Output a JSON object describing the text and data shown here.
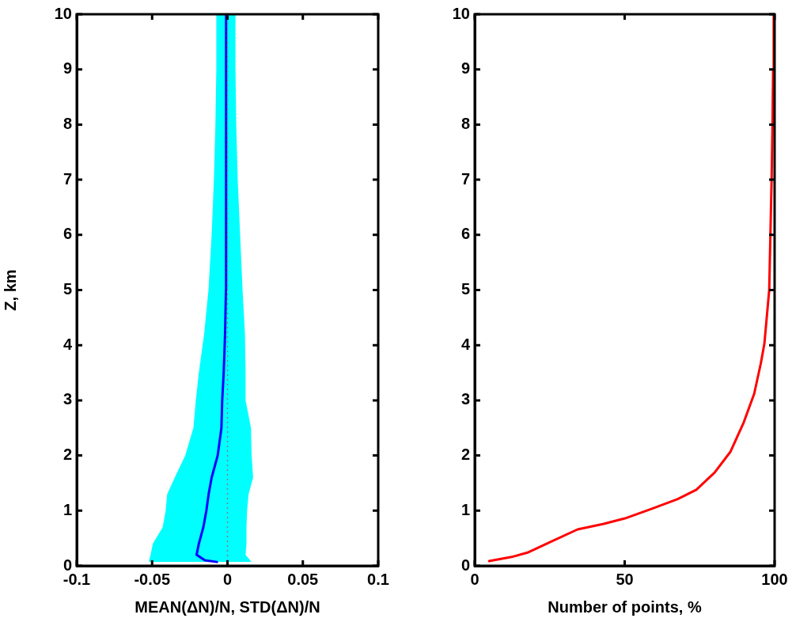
{
  "chart_data": [
    {
      "type": "line",
      "orientation": "horizontal",
      "xlabel": "MEAN(ΔN)/N, STD(ΔN)/N",
      "ylabel": "Z, km",
      "xlim": [
        -0.1,
        0.1
      ],
      "xticks": [
        -0.1,
        -0.05,
        0,
        0.05,
        0.1
      ],
      "ylim": [
        0,
        10
      ],
      "yticks": [
        0,
        1,
        2,
        3,
        4,
        5,
        6,
        7,
        8,
        9,
        10
      ],
      "series": [
        {
          "type": "line",
          "color": "#0000ff",
          "x": [
            0.07,
            0.1,
            0.2,
            0.4,
            0.7,
            1.0,
            1.3,
            1.6,
            2.0,
            2.5,
            3.0,
            3.5,
            4.2,
            5,
            6,
            7,
            8,
            9,
            10
          ],
          "values": [
            -0.007,
            -0.015,
            -0.0205,
            -0.019,
            -0.016,
            -0.014,
            -0.0125,
            -0.0105,
            -0.0065,
            -0.004,
            -0.0035,
            -0.0025,
            -0.0016,
            -0.001,
            -0.0008,
            -0.0008,
            -0.001,
            -0.001,
            -0.001
          ],
          "lower": [
            -0.052,
            -0.052,
            -0.051,
            -0.0495,
            -0.043,
            -0.041,
            -0.04,
            -0.035,
            -0.028,
            -0.0226,
            -0.021,
            -0.019,
            -0.0155,
            -0.0126,
            -0.0105,
            -0.009,
            -0.008,
            -0.0074,
            -0.0074
          ],
          "upper": [
            0.016,
            0.015,
            0.012,
            0.0126,
            0.0126,
            0.013,
            0.014,
            0.017,
            0.016,
            0.0156,
            0.012,
            0.012,
            0.0116,
            0.01,
            0.0084,
            0.0068,
            0.0058,
            0.0053,
            0.0053
          ]
        }
      ],
      "ref_lines": [
        {
          "axis": "x",
          "value": 0,
          "color": "#808080",
          "line_style": "dotted"
        }
      ]
    },
    {
      "type": "line",
      "orientation": "horizontal",
      "xlabel": "Number of points, %",
      "xlim": [
        0,
        100
      ],
      "xticks": [
        0,
        50,
        100
      ],
      "ylim": [
        0,
        10
      ],
      "yticks": [
        0,
        1,
        2,
        3,
        4,
        5,
        6,
        7,
        8,
        9,
        10
      ],
      "series": [
        {
          "color": "#ff0000",
          "x": [
            0.085,
            0.16,
            0.24,
            0.44,
            0.66,
            0.76,
            0.86,
            1.03,
            1.21,
            1.38,
            1.69,
            2.07,
            2.6,
            3.12,
            3.67,
            4.03,
            5,
            6,
            7,
            8,
            9,
            10
          ],
          "values": [
            4.8,
            12.3,
            17.6,
            25.5,
            34.3,
            43,
            50.1,
            58.9,
            67.7,
            73.9,
            80,
            85.3,
            89.7,
            93.2,
            95.4,
            96.6,
            98.2,
            98.6,
            99,
            99.3,
            99.5,
            99.7
          ]
        }
      ]
    }
  ]
}
